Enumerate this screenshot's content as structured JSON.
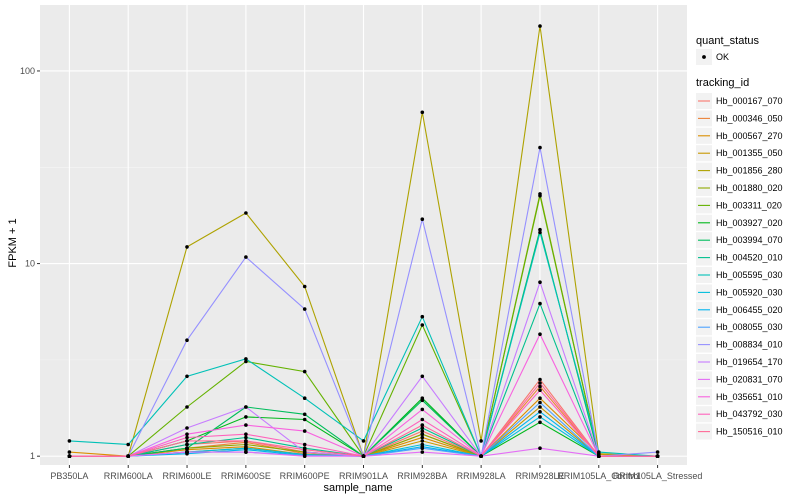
{
  "chart_data": {
    "type": "line",
    "title": "",
    "xlabel": "sample_name",
    "ylabel": "FPKM + 1",
    "y_scale": "log10",
    "ylim": [
      0.9,
      220
    ],
    "y_ticks": [
      1,
      10,
      100
    ],
    "y_tick_labels": [
      "1",
      "10",
      "100"
    ],
    "grid": true,
    "panel_background": "#ebebeb",
    "categories": [
      "PB350LA",
      "RRIM600LA",
      "RRIM600LE",
      "RRIM600SE",
      "RRIM600PE",
      "RRIM901LA",
      "RRIM928BA",
      "RRIM928LA",
      "RRIM928LE",
      "RRIM105LA_Control",
      "RRIM105LA_Stressed"
    ],
    "legend": {
      "position": "right",
      "shape_title": "quant_status",
      "shape_entries": [
        "OK"
      ],
      "color_title": "tracking_id"
    },
    "series": [
      {
        "name": "Hb_000167_070",
        "color": "#F8766D",
        "values": [
          1.0,
          1.0,
          1.15,
          1.2,
          1.05,
          1.0,
          1.35,
          1.0,
          2.5,
          1.0,
          1.0
        ]
      },
      {
        "name": "Hb_000346_050",
        "color": "#EC8239",
        "values": [
          1.0,
          1.0,
          1.1,
          1.18,
          1.03,
          1.0,
          1.3,
          1.0,
          2.3,
          1.0,
          1.0
        ]
      },
      {
        "name": "Hb_000567_270",
        "color": "#DB8E00",
        "values": [
          1.05,
          1.0,
          1.08,
          1.12,
          1.02,
          1.0,
          1.25,
          1.0,
          2.0,
          1.02,
          1.0
        ]
      },
      {
        "name": "Hb_001355_050",
        "color": "#C79800",
        "values": [
          1.0,
          1.0,
          1.05,
          1.1,
          1.02,
          1.0,
          1.2,
          1.0,
          1.8,
          1.0,
          1.0
        ]
      },
      {
        "name": "Hb_001856_280",
        "color": "#AEA200",
        "values": [
          1.0,
          1.0,
          12.2,
          18.3,
          7.6,
          1.0,
          61.0,
          1.2,
          171.0,
          1.03,
          1.0
        ]
      },
      {
        "name": "Hb_001880_020",
        "color": "#8FAA00",
        "values": [
          1.0,
          1.0,
          1.1,
          1.15,
          1.05,
          1.0,
          1.3,
          1.0,
          23.0,
          1.0,
          1.0
        ]
      },
      {
        "name": "Hb_003311_020",
        "color": "#64B200",
        "values": [
          1.0,
          1.0,
          1.8,
          3.1,
          2.75,
          1.0,
          4.8,
          1.0,
          22.5,
          1.0,
          1.0
        ]
      },
      {
        "name": "Hb_003927_020",
        "color": "#00B81B",
        "values": [
          1.0,
          1.0,
          1.2,
          1.6,
          1.55,
          1.0,
          2.0,
          1.0,
          1.5,
          1.0,
          1.0
        ]
      },
      {
        "name": "Hb_003994_070",
        "color": "#00BD5C",
        "values": [
          1.0,
          1.0,
          1.1,
          1.8,
          1.65,
          1.0,
          1.95,
          1.0,
          15.0,
          1.0,
          1.0
        ]
      },
      {
        "name": "Hb_004520_010",
        "color": "#00C08E",
        "values": [
          1.0,
          1.0,
          1.15,
          1.25,
          1.1,
          1.0,
          1.4,
          1.0,
          6.2,
          1.0,
          1.0
        ]
      },
      {
        "name": "Hb_005595_030",
        "color": "#00C1B7",
        "values": [
          1.2,
          1.15,
          2.6,
          3.2,
          2.0,
          1.2,
          5.3,
          1.0,
          14.5,
          1.05,
          1.0
        ]
      },
      {
        "name": "Hb_005920_030",
        "color": "#00BDDC",
        "values": [
          1.0,
          1.0,
          1.05,
          1.1,
          1.02,
          1.0,
          1.15,
          1.0,
          1.6,
          1.0,
          1.0
        ]
      },
      {
        "name": "Hb_006455_020",
        "color": "#00B4EF",
        "values": [
          1.0,
          1.0,
          1.03,
          1.08,
          1.01,
          1.0,
          1.12,
          1.0,
          1.7,
          1.0,
          1.0
        ]
      },
      {
        "name": "Hb_008055_030",
        "color": "#4DA2FF",
        "values": [
          1.0,
          1.0,
          1.05,
          1.05,
          1.01,
          1.0,
          1.1,
          1.0,
          1.9,
          1.0,
          1.0
        ]
      },
      {
        "name": "Hb_008834_010",
        "color": "#9590FF",
        "values": [
          1.0,
          1.0,
          4.0,
          10.8,
          5.8,
          1.0,
          17.0,
          1.0,
          40.0,
          1.0,
          1.05
        ]
      },
      {
        "name": "Hb_019654_170",
        "color": "#C77CFF",
        "values": [
          1.0,
          1.0,
          1.4,
          1.8,
          1.05,
          1.0,
          2.6,
          1.0,
          8.0,
          1.0,
          1.0
        ]
      },
      {
        "name": "Hb_020831_070",
        "color": "#E46EF6",
        "values": [
          1.0,
          1.0,
          1.05,
          1.05,
          1.0,
          1.0,
          1.05,
          1.0,
          1.1,
          1.0,
          1.0
        ]
      },
      {
        "name": "Hb_035651_010",
        "color": "#F863DF",
        "values": [
          1.0,
          1.0,
          1.3,
          1.45,
          1.35,
          1.0,
          1.75,
          1.0,
          4.3,
          1.0,
          1.0
        ]
      },
      {
        "name": "Hb_043792_030",
        "color": "#FF62BC",
        "values": [
          1.0,
          1.0,
          1.25,
          1.3,
          1.15,
          1.0,
          1.55,
          1.0,
          2.2,
          1.0,
          1.0
        ]
      },
      {
        "name": "Hb_150516_010",
        "color": "#FF6A98",
        "values": [
          1.0,
          1.0,
          1.2,
          1.2,
          1.08,
          1.0,
          1.45,
          1.0,
          2.4,
          1.0,
          1.0
        ]
      }
    ]
  }
}
